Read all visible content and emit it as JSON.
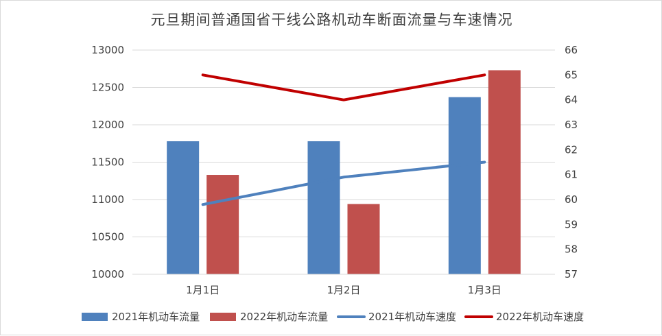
{
  "chart_data": {
    "type": "bar",
    "title": "元旦期间普通国省干线公路机动车断面流量与车速情况",
    "categories": [
      "1月1日",
      "1月2日",
      "1月3日"
    ],
    "series": [
      {
        "name": "2021年机动车流量",
        "kind": "bar",
        "axis": "left",
        "color": "#4F81BD",
        "values": [
          11780,
          11780,
          12370
        ]
      },
      {
        "name": "2022年机动车流量",
        "kind": "bar",
        "axis": "left",
        "color": "#C0504D",
        "values": [
          11330,
          10940,
          12730
        ]
      },
      {
        "name": "2021年机动车速度",
        "kind": "line",
        "axis": "right",
        "color": "#4F81BD",
        "values": [
          59.8,
          60.9,
          61.5
        ]
      },
      {
        "name": "2022年机动车速度",
        "kind": "line",
        "axis": "right",
        "color": "#C00000",
        "values": [
          65,
          64,
          65
        ]
      }
    ],
    "y_left": {
      "min": 10000,
      "max": 13000,
      "step": 500,
      "ticks": [
        "10000",
        "10500",
        "11000",
        "11500",
        "12000",
        "12500",
        "13000"
      ]
    },
    "y_right": {
      "min": 57,
      "max": 66,
      "step": 1,
      "ticks": [
        "57",
        "58",
        "59",
        "60",
        "61",
        "62",
        "63",
        "64",
        "65",
        "66"
      ]
    },
    "grid": true,
    "legend_position": "bottom"
  }
}
